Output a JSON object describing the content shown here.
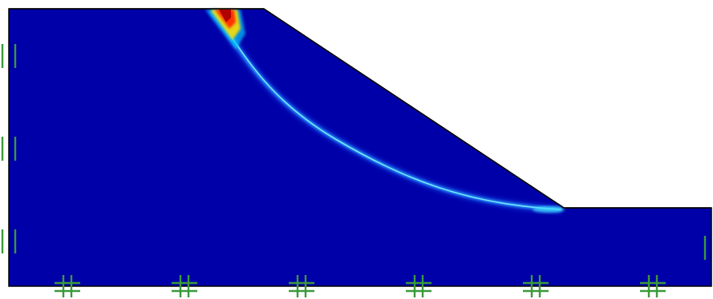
{
  "figure": {
    "type": "slope-stability-contour",
    "domain_fill_color": "#0000a8",
    "outline_color": "#000000",
    "support_color": "#3a9a3a",
    "colormap": "jet",
    "shear_band_colors": {
      "low": "#1e8cff",
      "mid": "#00e0ff",
      "high_yellow": "#ffd700",
      "peak": "#e00000"
    },
    "left_boundary_supports": 3,
    "right_boundary_supports": 1,
    "bottom_boundary_supports": 6
  }
}
